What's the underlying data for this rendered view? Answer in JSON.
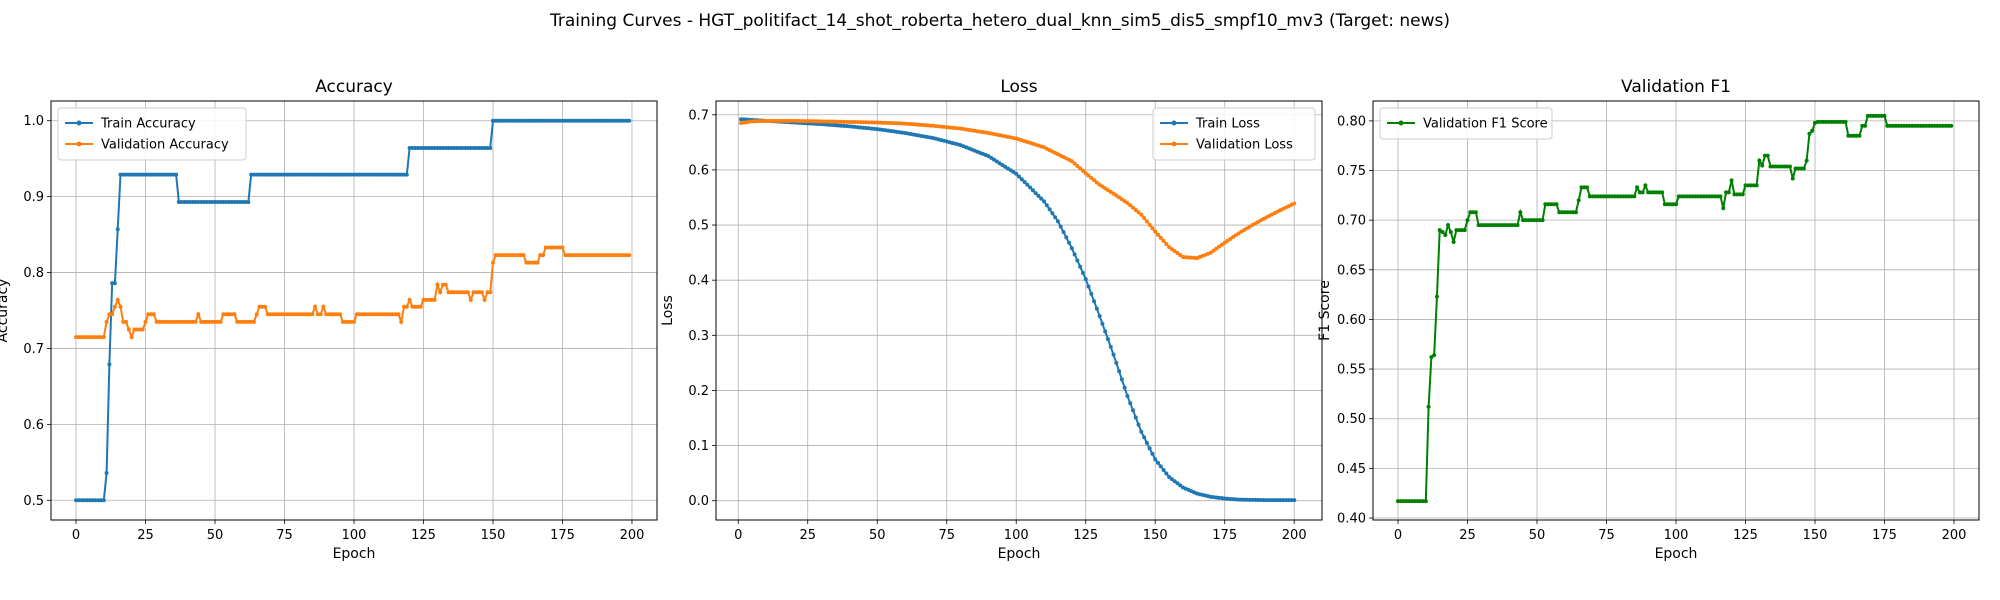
{
  "figure": {
    "title": "Training Curves - HGT_politifact_14_shot_roberta_hetero_dual_knn_sim5_dis5_smpf10_mv3 (Target: news)"
  },
  "colors": {
    "blue": "#1f77b4",
    "orange": "#ff7f0e",
    "green": "#008000",
    "grid": "#b0b0b0"
  },
  "chart_data": [
    {
      "type": "line",
      "title": "Accuracy",
      "xlabel": "Epoch",
      "ylabel": "Accuracy",
      "xlim": [
        -9,
        209
      ],
      "ylim": [
        0.474,
        1.026
      ],
      "xticks": [
        "0",
        "25",
        "50",
        "75",
        "100",
        "125",
        "150",
        "175",
        "200"
      ],
      "yticks": [
        "0.5",
        "0.6",
        "0.7",
        "0.8",
        "0.9",
        "1.0"
      ],
      "grid": true,
      "legend_position": "upper-left",
      "series": [
        {
          "name": "Train Accuracy",
          "color": "#1f77b4",
          "points": [
            [
              0,
              0.5
            ],
            [
              10,
              0.5
            ],
            [
              11,
              0.536
            ],
            [
              12,
              0.679
            ],
            [
              13,
              0.786
            ],
            [
              14,
              0.786
            ],
            [
              15,
              0.857
            ],
            [
              16,
              0.929
            ],
            [
              36,
              0.929
            ],
            [
              37,
              0.893
            ],
            [
              62,
              0.893
            ],
            [
              63,
              0.929
            ],
            [
              119,
              0.929
            ],
            [
              120,
              0.964
            ],
            [
              149,
              0.964
            ],
            [
              150,
              1.0
            ],
            [
              199,
              1.0
            ]
          ]
        },
        {
          "name": "Validation Accuracy",
          "color": "#ff7f0e",
          "points": [
            [
              0,
              0.715
            ],
            [
              10,
              0.715
            ],
            [
              11,
              0.735
            ],
            [
              12,
              0.745
            ],
            [
              13,
              0.745
            ],
            [
              14,
              0.755
            ],
            [
              15,
              0.764
            ],
            [
              16,
              0.755
            ],
            [
              17,
              0.735
            ],
            [
              18,
              0.735
            ],
            [
              19,
              0.725
            ],
            [
              20,
              0.715
            ],
            [
              21,
              0.725
            ],
            [
              24,
              0.725
            ],
            [
              25,
              0.735
            ],
            [
              26,
              0.745
            ],
            [
              28,
              0.745
            ],
            [
              29,
              0.735
            ],
            [
              43,
              0.735
            ],
            [
              44,
              0.745
            ],
            [
              45,
              0.735
            ],
            [
              52,
              0.735
            ],
            [
              53,
              0.745
            ],
            [
              57,
              0.745
            ],
            [
              58,
              0.735
            ],
            [
              64,
              0.735
            ],
            [
              65,
              0.745
            ],
            [
              66,
              0.755
            ],
            [
              68,
              0.755
            ],
            [
              69,
              0.745
            ],
            [
              85,
              0.745
            ],
            [
              86,
              0.755
            ],
            [
              87,
              0.745
            ],
            [
              88,
              0.745
            ],
            [
              89,
              0.755
            ],
            [
              90,
              0.745
            ],
            [
              95,
              0.745
            ],
            [
              96,
              0.735
            ],
            [
              100,
              0.735
            ],
            [
              101,
              0.745
            ],
            [
              116,
              0.745
            ],
            [
              117,
              0.735
            ],
            [
              118,
              0.755
            ],
            [
              119,
              0.755
            ],
            [
              120,
              0.764
            ],
            [
              121,
              0.755
            ],
            [
              124,
              0.755
            ],
            [
              125,
              0.764
            ],
            [
              129,
              0.764
            ],
            [
              130,
              0.784
            ],
            [
              131,
              0.774
            ],
            [
              132,
              0.784
            ],
            [
              133,
              0.784
            ],
            [
              134,
              0.774
            ],
            [
              141,
              0.774
            ],
            [
              142,
              0.764
            ],
            [
              143,
              0.774
            ],
            [
              146,
              0.774
            ],
            [
              147,
              0.764
            ],
            [
              148,
              0.774
            ],
            [
              149,
              0.774
            ],
            [
              150,
              0.813
            ],
            [
              151,
              0.823
            ],
            [
              161,
              0.823
            ],
            [
              162,
              0.813
            ],
            [
              166,
              0.813
            ],
            [
              167,
              0.823
            ],
            [
              168,
              0.823
            ],
            [
              169,
              0.833
            ],
            [
              175,
              0.833
            ],
            [
              176,
              0.823
            ],
            [
              199,
              0.823
            ]
          ]
        }
      ]
    },
    {
      "type": "line",
      "title": "Loss",
      "xlabel": "Epoch",
      "ylabel": "Loss",
      "xlim": [
        -8,
        210
      ],
      "ylim": [
        -0.035,
        0.725
      ],
      "xticks": [
        "0",
        "25",
        "50",
        "75",
        "100",
        "125",
        "150",
        "175",
        "200"
      ],
      "yticks": [
        "0.0",
        "0.1",
        "0.2",
        "0.3",
        "0.4",
        "0.5",
        "0.6",
        "0.7"
      ],
      "grid": true,
      "legend_position": "upper-right",
      "series": [
        {
          "name": "Train Loss",
          "color": "#1f77b4",
          "points": [
            [
              1,
              0.692
            ],
            [
              10,
              0.689
            ],
            [
              20,
              0.686
            ],
            [
              30,
              0.683
            ],
            [
              40,
              0.679
            ],
            [
              50,
              0.674
            ],
            [
              60,
              0.667
            ],
            [
              70,
              0.658
            ],
            [
              80,
              0.645
            ],
            [
              90,
              0.625
            ],
            [
              100,
              0.593
            ],
            [
              110,
              0.543
            ],
            [
              115,
              0.507
            ],
            [
              120,
              0.458
            ],
            [
              125,
              0.402
            ],
            [
              130,
              0.335
            ],
            [
              135,
              0.265
            ],
            [
              140,
              0.19
            ],
            [
              145,
              0.125
            ],
            [
              150,
              0.075
            ],
            [
              155,
              0.043
            ],
            [
              160,
              0.024
            ],
            [
              165,
              0.013
            ],
            [
              170,
              0.007
            ],
            [
              175,
              0.004
            ],
            [
              180,
              0.002
            ],
            [
              190,
              0.001
            ],
            [
              200,
              0.001
            ]
          ]
        },
        {
          "name": "Validation Loss",
          "color": "#ff7f0e",
          "points": [
            [
              1,
              0.685
            ],
            [
              5,
              0.688
            ],
            [
              10,
              0.689
            ],
            [
              20,
              0.689
            ],
            [
              30,
              0.688
            ],
            [
              40,
              0.687
            ],
            [
              50,
              0.686
            ],
            [
              60,
              0.684
            ],
            [
              70,
              0.68
            ],
            [
              80,
              0.675
            ],
            [
              90,
              0.667
            ],
            [
              100,
              0.657
            ],
            [
              110,
              0.641
            ],
            [
              120,
              0.616
            ],
            [
              125,
              0.594
            ],
            [
              130,
              0.573
            ],
            [
              135,
              0.557
            ],
            [
              140,
              0.54
            ],
            [
              145,
              0.519
            ],
            [
              150,
              0.488
            ],
            [
              155,
              0.46
            ],
            [
              160,
              0.442
            ],
            [
              165,
              0.44
            ],
            [
              170,
              0.45
            ],
            [
              175,
              0.468
            ],
            [
              180,
              0.485
            ],
            [
              185,
              0.5
            ],
            [
              190,
              0.514
            ],
            [
              195,
              0.527
            ],
            [
              200,
              0.539
            ]
          ]
        }
      ]
    },
    {
      "type": "line",
      "title": "Validation F1",
      "xlabel": "Epoch",
      "ylabel": "F1 Score",
      "xlim": [
        -9,
        209
      ],
      "ylim": [
        0.398,
        0.82
      ],
      "xticks": [
        "0",
        "25",
        "50",
        "75",
        "100",
        "125",
        "150",
        "175",
        "200"
      ],
      "yticks": [
        "0.40",
        "0.45",
        "0.50",
        "0.55",
        "0.60",
        "0.65",
        "0.70",
        "0.75",
        "0.80"
      ],
      "grid": true,
      "legend_position": "upper-left",
      "series": [
        {
          "name": "Validation F1 Score",
          "color": "#008000",
          "points": [
            [
              0,
              0.417
            ],
            [
              10,
              0.417
            ],
            [
              11,
              0.512
            ],
            [
              12,
              0.562
            ],
            [
              13,
              0.564
            ],
            [
              14,
              0.623
            ],
            [
              15,
              0.69
            ],
            [
              16,
              0.688
            ],
            [
              17,
              0.685
            ],
            [
              18,
              0.695
            ],
            [
              19,
              0.688
            ],
            [
              20,
              0.678
            ],
            [
              21,
              0.69
            ],
            [
              24,
              0.69
            ],
            [
              25,
              0.7
            ],
            [
              26,
              0.708
            ],
            [
              28,
              0.708
            ],
            [
              29,
              0.695
            ],
            [
              43,
              0.695
            ],
            [
              44,
              0.708
            ],
            [
              45,
              0.7
            ],
            [
              52,
              0.7
            ],
            [
              53,
              0.716
            ],
            [
              57,
              0.716
            ],
            [
              58,
              0.708
            ],
            [
              64,
              0.708
            ],
            [
              65,
              0.72
            ],
            [
              66,
              0.733
            ],
            [
              68,
              0.733
            ],
            [
              69,
              0.724
            ],
            [
              85,
              0.724
            ],
            [
              86,
              0.733
            ],
            [
              87,
              0.728
            ],
            [
              88,
              0.728
            ],
            [
              89,
              0.735
            ],
            [
              90,
              0.728
            ],
            [
              95,
              0.728
            ],
            [
              96,
              0.716
            ],
            [
              100,
              0.716
            ],
            [
              101,
              0.724
            ],
            [
              116,
              0.724
            ],
            [
              117,
              0.712
            ],
            [
              118,
              0.728
            ],
            [
              119,
              0.728
            ],
            [
              120,
              0.74
            ],
            [
              121,
              0.726
            ],
            [
              124,
              0.726
            ],
            [
              125,
              0.735
            ],
            [
              129,
              0.735
            ],
            [
              130,
              0.76
            ],
            [
              131,
              0.755
            ],
            [
              132,
              0.765
            ],
            [
              133,
              0.765
            ],
            [
              134,
              0.754
            ],
            [
              141,
              0.754
            ],
            [
              142,
              0.742
            ],
            [
              143,
              0.752
            ],
            [
              146,
              0.752
            ],
            [
              147,
              0.76
            ],
            [
              148,
              0.787
            ],
            [
              149,
              0.79
            ],
            [
              150,
              0.798
            ],
            [
              151,
              0.799
            ],
            [
              161,
              0.799
            ],
            [
              162,
              0.785
            ],
            [
              166,
              0.785
            ],
            [
              167,
              0.795
            ],
            [
              168,
              0.795
            ],
            [
              169,
              0.805
            ],
            [
              175,
              0.805
            ],
            [
              176,
              0.795
            ],
            [
              199,
              0.795
            ]
          ]
        }
      ]
    }
  ]
}
